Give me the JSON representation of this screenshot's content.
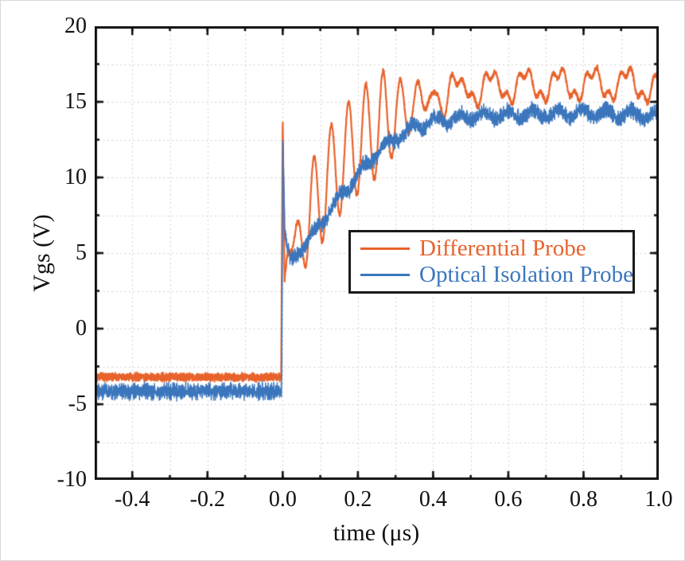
{
  "figure": {
    "background": "#ffffff",
    "border_color": "#d9d9d9"
  },
  "chart_data": {
    "type": "line",
    "title": "",
    "xlabel": "time (μs)",
    "ylabel": "Vgs (V)",
    "xlim": [
      -0.5,
      1.0
    ],
    "ylim": [
      -10,
      20
    ],
    "x_tick_values": [
      -0.4,
      -0.2,
      0.0,
      0.2,
      0.4,
      0.6,
      0.8,
      1.0
    ],
    "x_tick_labels": [
      "-0.4",
      "-0.2",
      "0.0",
      "0.2",
      "0.4",
      "0.6",
      "0.8",
      "1.0"
    ],
    "x_minor_step": 0.1,
    "y_tick_values": [
      20,
      15,
      10,
      5,
      0,
      -5,
      -10
    ],
    "y_tick_labels": [
      "20",
      "15",
      "10",
      "5",
      "0",
      "-5",
      "-10"
    ],
    "y_minor_step": 2.5,
    "grid": {
      "show": true,
      "color": "#cccccc",
      "x_step": 0.1,
      "y_step": 2.5,
      "dash": [
        1.8,
        3.6
      ]
    },
    "axis_color": "#111111",
    "legend": {
      "position": "inside-middle-right",
      "entries": [
        {
          "label": "Differential Probe",
          "color": "#E8622B"
        },
        {
          "label": "Optical Isolation Probe",
          "color": "#3B76BD"
        }
      ]
    },
    "series": [
      {
        "name": "Differential Probe",
        "color": "#E8622B",
        "line_width": 2.2,
        "seed": 7,
        "samples": 3200,
        "baseline_level": -3.2,
        "spike_time": 0.0,
        "spike_peak": 14.0,
        "post_spike_min": 3.2,
        "settle_level": 16.1,
        "noise_pre": 0.19,
        "noise_post": 0.12,
        "mean_x": [
          -0.5,
          -0.004,
          0.0,
          0.005,
          0.012,
          0.03,
          0.06,
          0.1,
          0.15,
          0.2,
          0.25,
          0.3,
          0.35,
          0.4,
          0.5,
          0.6,
          0.7,
          0.8,
          0.9,
          1.0
        ],
        "mean_y": [
          -3.2,
          -3.2,
          14.0,
          3.2,
          4.9,
          5.4,
          6.7,
          8.9,
          10.9,
          12.3,
          13.4,
          14.2,
          14.8,
          15.3,
          15.9,
          16.05,
          16.1,
          16.15,
          16.2,
          16.0
        ],
        "ringing": {
          "t0": 0.06,
          "period": 0.046,
          "amp": 3.4,
          "ramp_from": 0.018,
          "ramp_len": 0.055,
          "decay_start": 0.27,
          "decay_tau": 0.09,
          "end": 0.75
        },
        "ripples": [
          {
            "onset": 0.33,
            "ramp": 0.12,
            "amp": 0.9,
            "period": 0.09,
            "phase": 0.5
          },
          {
            "onset": 0.33,
            "ramp": 0.12,
            "amp": 0.42,
            "period": 0.03,
            "phase": 2.2
          }
        ]
      },
      {
        "name": "Optical Isolation Probe",
        "color": "#3B76BD",
        "line_width": 1.5,
        "seed": 99,
        "samples": 3600,
        "baseline_level": -4.1,
        "spike_time": 0.0,
        "spike_peak": 12.5,
        "post_spike_min": 4.5,
        "settle_level": 14.2,
        "noise_pre": 0.38,
        "noise_post": 0.36,
        "mean_x": [
          -0.5,
          -0.003,
          0.0005,
          0.006,
          0.02,
          0.05,
          0.1,
          0.15,
          0.2,
          0.25,
          0.3,
          0.35,
          0.4,
          0.5,
          0.6,
          0.75,
          0.9,
          1.0
        ],
        "mean_y": [
          -4.15,
          -4.15,
          12.5,
          6.3,
          4.6,
          5.2,
          6.9,
          8.6,
          10.2,
          11.6,
          12.6,
          13.3,
          13.7,
          14.05,
          14.15,
          14.25,
          14.2,
          14.1
        ],
        "ripples": [
          {
            "onset": 0.04,
            "ramp": 0.05,
            "amp": 0.28,
            "period": 0.065,
            "phase": 0.0
          }
        ]
      }
    ],
    "draw_order": [
      0,
      1
    ],
    "plot_frame": {
      "line_width": 3,
      "tick_major_len": 11,
      "tick_minor_len": 6
    }
  }
}
